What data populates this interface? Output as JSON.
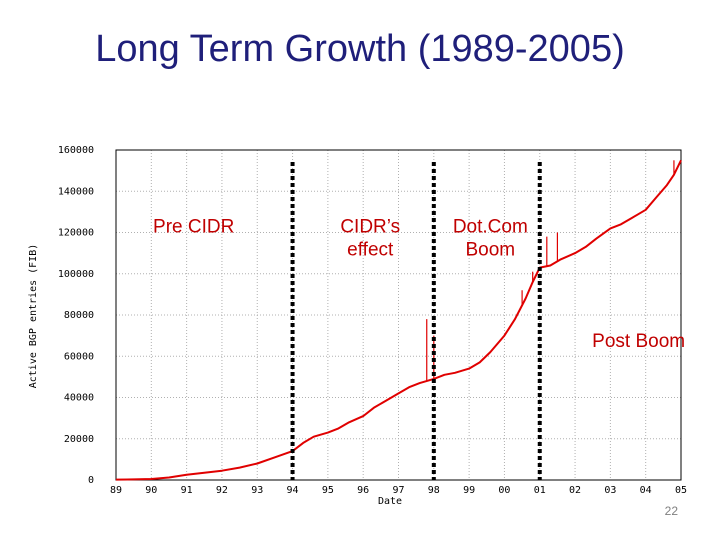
{
  "slide": {
    "title": "Long Term Growth (1989-2005)",
    "slide_number": "22"
  },
  "chart_data": {
    "type": "line",
    "xlabel": "Date",
    "ylabel": "Active BGP entries (FIB)",
    "x_ticks": [
      "89",
      "90",
      "91",
      "92",
      "93",
      "94",
      "95",
      "96",
      "97",
      "98",
      "99",
      "00",
      "01",
      "02",
      "03",
      "04",
      "05"
    ],
    "xlim": [
      1989,
      2005
    ],
    "y_ticks": [
      "0",
      "20000",
      "40000",
      "60000",
      "80000",
      "100000",
      "120000",
      "140000",
      "160000"
    ],
    "ylim": [
      0,
      160000
    ],
    "grid": true,
    "colors": {
      "series": "#e00000",
      "dividers": "#000000",
      "annotations": "#c00000"
    },
    "series": [
      {
        "x": [
          1989.0,
          1989.5,
          1990.0,
          1990.5,
          1991.0,
          1991.5,
          1992.0,
          1992.5,
          1993.0,
          1993.5,
          1994.0,
          1994.3,
          1994.6,
          1995.0,
          1995.3,
          1995.6,
          1996.0,
          1996.3,
          1996.6,
          1997.0,
          1997.3,
          1997.6,
          1998.0,
          1998.3,
          1998.6,
          1999.0,
          1999.3,
          1999.6,
          2000.0,
          2000.3,
          2000.6,
          2000.8,
          2001.0,
          2001.3,
          2001.6,
          2002.0,
          2002.3,
          2002.6,
          2003.0,
          2003.3,
          2003.6,
          2004.0,
          2004.3,
          2004.6,
          2004.8,
          2005.0
        ],
        "y": [
          200,
          300,
          500,
          1200,
          2500,
          3500,
          4500,
          6000,
          8000,
          11000,
          14000,
          18000,
          21000,
          23000,
          25000,
          28000,
          31000,
          35000,
          38000,
          42000,
          45000,
          47000,
          49000,
          51000,
          52000,
          54000,
          57000,
          62000,
          70000,
          78000,
          88000,
          96000,
          103000,
          104000,
          107000,
          110000,
          113000,
          117000,
          122000,
          124000,
          127000,
          131000,
          137000,
          143000,
          148000,
          155000
        ]
      }
    ],
    "spikes": [
      {
        "x": 1997.8,
        "y": 78000
      },
      {
        "x": 1998.0,
        "y": 70000
      },
      {
        "x": 2000.5,
        "y": 92000
      },
      {
        "x": 2000.8,
        "y": 101000
      },
      {
        "x": 2001.2,
        "y": 118000
      },
      {
        "x": 2001.5,
        "y": 120000
      },
      {
        "x": 2004.8,
        "y": 155000
      }
    ],
    "dividers": [
      1994.0,
      1998.0,
      2001.0
    ],
    "annotations": [
      {
        "lines": [
          "Pre CIDR"
        ],
        "x": 1991.2,
        "y": 120000
      },
      {
        "lines": [
          "CIDR’s",
          "effect"
        ],
        "x": 1996.2,
        "y": 120000
      },
      {
        "lines": [
          "Dot.Com",
          "Boom"
        ],
        "x": 1999.6,
        "y": 120000
      },
      {
        "lines": [
          "Post Boom"
        ],
        "x": 2003.8,
        "y": 64500
      }
    ]
  }
}
